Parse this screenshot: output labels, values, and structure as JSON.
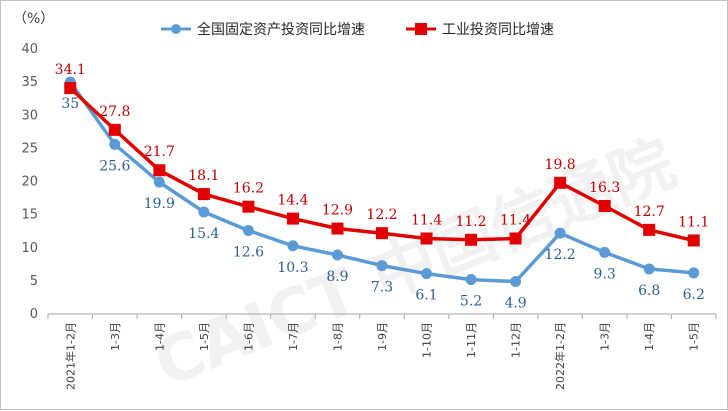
{
  "chart_data": {
    "type": "line",
    "unit_label": "（%）",
    "categories": [
      "2021年1-2月",
      "1-3月",
      "1-4月",
      "1-5月",
      "1-6月",
      "1-7月",
      "1-8月",
      "1-9月",
      "1-10月",
      "1-11月",
      "1-12月",
      "2022年1-2月",
      "1-3月",
      "1-4月",
      "1-5月"
    ],
    "ylim": [
      0,
      40
    ],
    "yticks": [
      0,
      5,
      10,
      15,
      20,
      25,
      30,
      35,
      40
    ],
    "grid": false,
    "legend_position": "top",
    "series": [
      {
        "name": "全国固定资产投资同比增速",
        "color": "#5b9bd5",
        "marker": "circle",
        "values": [
          35,
          25.6,
          19.9,
          15.4,
          12.6,
          10.3,
          8.9,
          7.3,
          6.1,
          5.2,
          4.9,
          12.2,
          9.3,
          6.8,
          6.2
        ]
      },
      {
        "name": "工业投资同比增速",
        "color": "#e00000",
        "marker": "square",
        "values": [
          34.1,
          27.8,
          21.7,
          18.1,
          16.2,
          14.4,
          12.9,
          12.2,
          11.4,
          11.2,
          11.4,
          19.8,
          16.3,
          12.7,
          11.1
        ]
      }
    ],
    "watermark": "CAICT 中国信通院"
  }
}
